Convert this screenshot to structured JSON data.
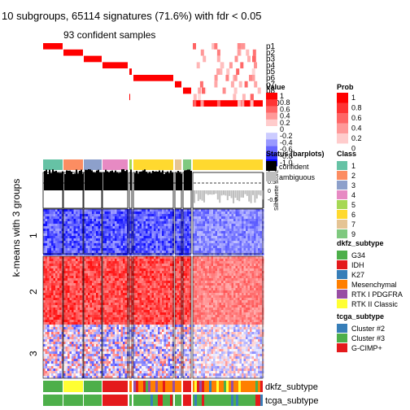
{
  "title": "10 subgroups, 65114 signatures (71.6%) with fdr < 0.05",
  "subtitle": "93 confident samples",
  "ylabel": "k-means with 3 groups",
  "row_labels": [
    "p1",
    "p2",
    "p3",
    "p4",
    "p5",
    "p6",
    "p7",
    "p8",
    "p9",
    "p10"
  ],
  "chart_data": {
    "type": "heatmap",
    "title": "10 subgroups, 65114 signatures (71.6%) with fdr < 0.05",
    "subtitle": "93 confident samples",
    "row_groups": [
      "1",
      "2",
      "3"
    ],
    "annotation_tracks": [
      "dkfz_subtype",
      "tcga_subtype"
    ],
    "legends": {
      "value": {
        "title": "Value",
        "ticks": [
          "1",
          "0.8",
          "0.6",
          "0.4",
          "0.2",
          "0",
          "-0.2",
          "-0.4",
          "-0.6",
          "-0.8",
          "-1.0"
        ],
        "low": "#0000ff",
        "mid": "#ffffff",
        "high": "#ff0000"
      },
      "prob": {
        "title": "Prob",
        "ticks": [
          "1",
          "0.8",
          "0.6",
          "0.4",
          "0.2",
          "0"
        ],
        "low": "#ffffff",
        "high": "#ff0000"
      },
      "status": {
        "title": "Status (barplots)",
        "items": [
          {
            "label": "confident",
            "color": "#000000"
          },
          {
            "label": "ambiguous",
            "color": "#bebebe"
          }
        ]
      },
      "class": {
        "title": "Class",
        "items": [
          {
            "label": "1",
            "color": "#66c2a5"
          },
          {
            "label": "2",
            "color": "#fc8d62"
          },
          {
            "label": "3",
            "color": "#8da0cb"
          },
          {
            "label": "4",
            "color": "#e78ac3"
          },
          {
            "label": "5",
            "color": "#a6d854"
          },
          {
            "label": "6",
            "color": "#ffd92f"
          },
          {
            "label": "7",
            "color": "#e5c494"
          },
          {
            "label": "9",
            "color": "#7fc97f"
          }
        ]
      },
      "dkfz_subtype": {
        "title": "dkfz_subtype",
        "items": [
          {
            "label": "G34",
            "color": "#4daf4a"
          },
          {
            "label": "IDH",
            "color": "#e41a1c"
          },
          {
            "label": "K27",
            "color": "#377eb8"
          },
          {
            "label": "Mesenchymal",
            "color": "#ff7f00"
          },
          {
            "label": "RTK I PDGFRA",
            "color": "#984ea3"
          },
          {
            "label": "RTK II Classic",
            "color": "#ffff33"
          }
        ]
      },
      "tcga_subtype": {
        "title": "tcga_subtype",
        "items": [
          {
            "label": "Cluster #2",
            "color": "#377eb8"
          },
          {
            "label": "Cluster #3",
            "color": "#4daf4a"
          },
          {
            "label": "G-CIMP+",
            "color": "#e41a1c"
          }
        ]
      },
      "silhouette": {
        "title": "Silhouette score",
        "ticks": [
          "1",
          "0.5",
          "0",
          "-0.5"
        ]
      }
    }
  }
}
